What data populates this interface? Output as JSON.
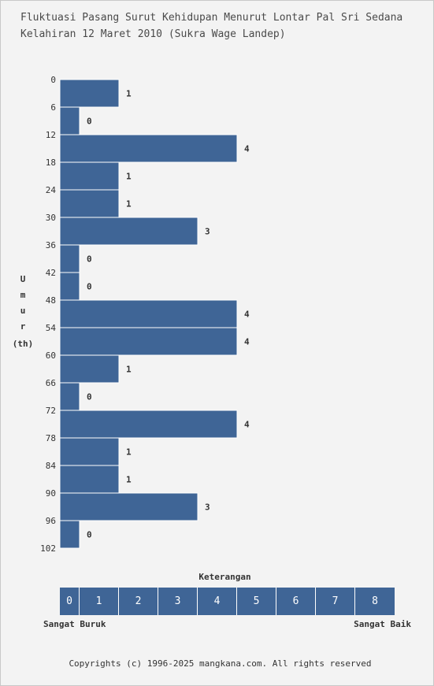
{
  "chart_data": {
    "type": "bar",
    "orientation": "horizontal",
    "title": [
      "Fluktuasi Pasang Surut Kehidupan Menurut Lontar Pal Sri Sedana",
      "Kelahiran 12 Maret 2010 (Sukra Wage Landep)"
    ],
    "ylabel_chars": [
      "U",
      "m",
      "u",
      "r"
    ],
    "ylabel_unit": "(th)",
    "y_ticks": [
      "0",
      "6",
      "12",
      "18",
      "24",
      "30",
      "36",
      "42",
      "48",
      "54",
      "60",
      "66",
      "72",
      "78",
      "84",
      "90",
      "96",
      "102"
    ],
    "values": [
      1,
      0,
      4,
      1,
      1,
      3,
      0,
      0,
      4,
      4,
      1,
      0,
      4,
      1,
      1,
      3,
      0
    ],
    "bar_color": "#3f6596",
    "legend": {
      "title": "Keterangan",
      "scale": [
        "0",
        "1",
        "2",
        "3",
        "4",
        "5",
        "6",
        "7",
        "8"
      ],
      "low_label": "Sangat Buruk",
      "high_label": "Sangat Baik"
    }
  },
  "footer": "Copyrights (c) 1996-2025 mangkana.com. All rights reserved"
}
